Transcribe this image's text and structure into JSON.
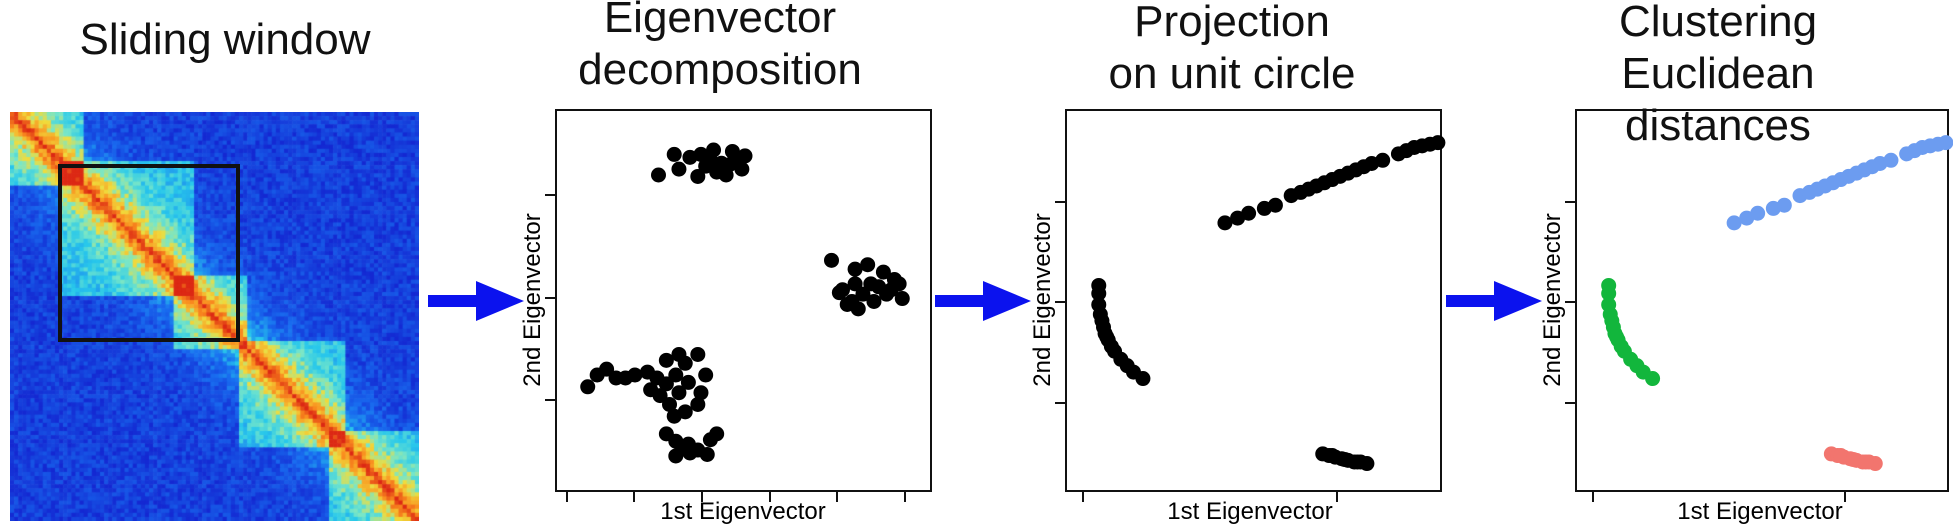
{
  "titles": {
    "sliding_window": "Sliding window",
    "eigen_decomp": "Eigenvector\ndecomposition",
    "projection": "Projection\non unit circle",
    "clustering": "Clustering\nEuclidean distances"
  },
  "axes": {
    "xlabel": "1st Eigenvector",
    "ylabel": "2nd Eigenvector"
  },
  "colors": {
    "arrow": "#0b12ee",
    "points": "#000000",
    "cluster_blue": "#6c9cf0",
    "cluster_green": "#12b63c",
    "cluster_red": "#f2756e"
  },
  "icons": [
    "right-arrow-icon"
  ],
  "chart_data": [
    {
      "type": "scatter",
      "panel": "eigenvector-decomposition",
      "xlabel": "1st Eigenvector",
      "ylabel": "2nd Eigenvector",
      "xlim": [
        -1.1,
        1.1
      ],
      "ylim": [
        -1.2,
        1.2
      ],
      "series": [
        {
          "points": [
            [
              -0.45,
              1.0
            ],
            [
              -0.35,
              0.98
            ],
            [
              -0.28,
              1.0
            ],
            [
              -0.22,
              0.96
            ],
            [
              -0.15,
              0.94
            ],
            [
              -0.1,
              0.93
            ],
            [
              -0.05,
              0.95
            ],
            [
              -0.18,
              0.88
            ],
            [
              -0.3,
              0.85
            ],
            [
              -0.42,
              0.9
            ],
            [
              -0.12,
              0.86
            ],
            [
              0.0,
              0.99
            ],
            [
              -0.2,
              1.03
            ],
            [
              -0.08,
              1.02
            ],
            [
              -0.55,
              0.86
            ],
            [
              -0.02,
              0.9
            ],
            [
              -0.25,
              0.92
            ],
            [
              0.55,
              0.28
            ],
            [
              0.7,
              0.22
            ],
            [
              0.78,
              0.25
            ],
            [
              0.62,
              0.08
            ],
            [
              0.75,
              0.05
            ],
            [
              0.85,
              0.1
            ],
            [
              0.95,
              0.15
            ],
            [
              0.68,
              0.0
            ],
            [
              0.82,
              0.0
            ],
            [
              0.9,
              0.05
            ],
            [
              0.72,
              -0.05
            ],
            [
              0.6,
              0.06
            ],
            [
              0.88,
              0.2
            ],
            [
              1.0,
              0.02
            ],
            [
              0.8,
              0.12
            ],
            [
              0.7,
              0.12
            ],
            [
              0.93,
              0.08
            ],
            [
              0.65,
              -0.02
            ],
            [
              0.98,
              0.12
            ],
            [
              -1.0,
              -0.58
            ],
            [
              -0.94,
              -0.5
            ],
            [
              -0.88,
              -0.46
            ],
            [
              -0.82,
              -0.52
            ],
            [
              -0.76,
              -0.52
            ],
            [
              -0.7,
              -0.5
            ],
            [
              -0.62,
              -0.48
            ],
            [
              -0.56,
              -0.52
            ],
            [
              -0.5,
              -0.56
            ],
            [
              -0.44,
              -0.5
            ],
            [
              -0.6,
              -0.6
            ],
            [
              -0.54,
              -0.64
            ],
            [
              -0.48,
              -0.7
            ],
            [
              -0.42,
              -0.62
            ],
            [
              -0.36,
              -0.55
            ],
            [
              -0.5,
              -0.4
            ],
            [
              -0.42,
              -0.36
            ],
            [
              -0.38,
              -0.42
            ],
            [
              -0.3,
              -0.36
            ],
            [
              -0.45,
              -0.78
            ],
            [
              -0.38,
              -0.75
            ],
            [
              -0.3,
              -0.7
            ],
            [
              -0.25,
              -0.5
            ],
            [
              -0.28,
              -0.62
            ],
            [
              -0.5,
              -0.9
            ],
            [
              -0.44,
              -0.95
            ],
            [
              -0.4,
              -1.0
            ],
            [
              -0.35,
              -1.03
            ],
            [
              -0.3,
              -1.01
            ],
            [
              -0.24,
              -1.04
            ],
            [
              -0.44,
              -1.05
            ],
            [
              -0.36,
              -0.97
            ],
            [
              -0.22,
              -0.94
            ],
            [
              -0.18,
              -0.9
            ]
          ]
        }
      ]
    },
    {
      "type": "scatter",
      "panel": "projection-on-unit-circle",
      "xlabel": "1st Eigenvector",
      "ylabel": "2nd Eigenvector",
      "xlim": [
        -1.1,
        1.1
      ],
      "ylim": [
        -1.1,
        1.1
      ],
      "series": [
        {
          "points": [
            [
              -0.2,
              0.49
            ],
            [
              -0.12,
              0.52
            ],
            [
              -0.05,
              0.55
            ],
            [
              0.05,
              0.58
            ],
            [
              0.12,
              0.6
            ],
            [
              0.22,
              0.66
            ],
            [
              0.28,
              0.68
            ],
            [
              0.33,
              0.7
            ],
            [
              0.38,
              0.72
            ],
            [
              0.43,
              0.74
            ],
            [
              0.48,
              0.76
            ],
            [
              0.53,
              0.78
            ],
            [
              0.58,
              0.8
            ],
            [
              0.63,
              0.82
            ],
            [
              0.68,
              0.84
            ],
            [
              0.73,
              0.86
            ],
            [
              0.8,
              0.88
            ],
            [
              0.9,
              0.92
            ],
            [
              0.95,
              0.94
            ],
            [
              1.0,
              0.96
            ],
            [
              1.05,
              0.97
            ],
            [
              1.1,
              0.98
            ],
            [
              1.15,
              0.99
            ],
            [
              -1.0,
              0.05
            ],
            [
              -1.0,
              -0.02
            ],
            [
              -0.99,
              -0.08
            ],
            [
              -0.98,
              -0.12
            ],
            [
              -0.97,
              -0.16
            ],
            [
              -0.96,
              -0.2
            ],
            [
              -0.94,
              -0.24
            ],
            [
              -0.92,
              -0.28
            ],
            [
              -0.9,
              -0.31
            ],
            [
              -0.86,
              -0.36
            ],
            [
              -0.82,
              -0.4
            ],
            [
              -0.78,
              -0.44
            ],
            [
              -0.72,
              -0.48
            ],
            [
              -1.0,
              0.1
            ],
            [
              -0.95,
              -0.22
            ],
            [
              0.42,
              -0.95
            ],
            [
              0.46,
              -0.96
            ],
            [
              0.5,
              -0.97
            ],
            [
              0.54,
              -0.98
            ],
            [
              0.58,
              -0.99
            ],
            [
              0.62,
              -1.0
            ],
            [
              0.66,
              -1.0
            ],
            [
              0.7,
              -1.01
            ],
            [
              0.48,
              -0.96
            ],
            [
              0.56,
              -0.985
            ],
            [
              0.64,
              -1.0
            ]
          ]
        }
      ]
    },
    {
      "type": "scatter",
      "panel": "clustering-euclidean-distances",
      "xlabel": "1st Eigenvector",
      "ylabel": "2nd Eigenvector",
      "xlim": [
        -1.1,
        1.1
      ],
      "ylim": [
        -1.1,
        1.1
      ],
      "series": [
        {
          "color": "#6c9cf0",
          "points": [
            [
              -0.2,
              0.49
            ],
            [
              -0.12,
              0.52
            ],
            [
              -0.05,
              0.55
            ],
            [
              0.05,
              0.58
            ],
            [
              0.12,
              0.6
            ],
            [
              0.22,
              0.66
            ],
            [
              0.28,
              0.68
            ],
            [
              0.33,
              0.7
            ],
            [
              0.38,
              0.72
            ],
            [
              0.43,
              0.74
            ],
            [
              0.48,
              0.76
            ],
            [
              0.53,
              0.78
            ],
            [
              0.58,
              0.8
            ],
            [
              0.63,
              0.82
            ],
            [
              0.68,
              0.84
            ],
            [
              0.73,
              0.86
            ],
            [
              0.8,
              0.88
            ],
            [
              0.9,
              0.92
            ],
            [
              0.95,
              0.94
            ],
            [
              1.0,
              0.96
            ],
            [
              1.05,
              0.97
            ],
            [
              1.1,
              0.98
            ],
            [
              1.15,
              0.99
            ]
          ]
        },
        {
          "color": "#12b63c",
          "points": [
            [
              -1.0,
              0.05
            ],
            [
              -1.0,
              -0.02
            ],
            [
              -0.99,
              -0.08
            ],
            [
              -0.98,
              -0.12
            ],
            [
              -0.97,
              -0.16
            ],
            [
              -0.96,
              -0.2
            ],
            [
              -0.94,
              -0.24
            ],
            [
              -0.92,
              -0.28
            ],
            [
              -0.9,
              -0.31
            ],
            [
              -0.86,
              -0.36
            ],
            [
              -0.82,
              -0.4
            ],
            [
              -0.78,
              -0.44
            ],
            [
              -0.72,
              -0.48
            ],
            [
              -1.0,
              0.1
            ],
            [
              -0.95,
              -0.22
            ]
          ]
        },
        {
          "color": "#f2756e",
          "points": [
            [
              0.42,
              -0.95
            ],
            [
              0.46,
              -0.96
            ],
            [
              0.5,
              -0.97
            ],
            [
              0.54,
              -0.98
            ],
            [
              0.58,
              -0.99
            ],
            [
              0.62,
              -1.0
            ],
            [
              0.66,
              -1.0
            ],
            [
              0.7,
              -1.01
            ],
            [
              0.48,
              -0.96
            ],
            [
              0.56,
              -0.985
            ],
            [
              0.64,
              -1.0
            ]
          ]
        }
      ]
    }
  ]
}
